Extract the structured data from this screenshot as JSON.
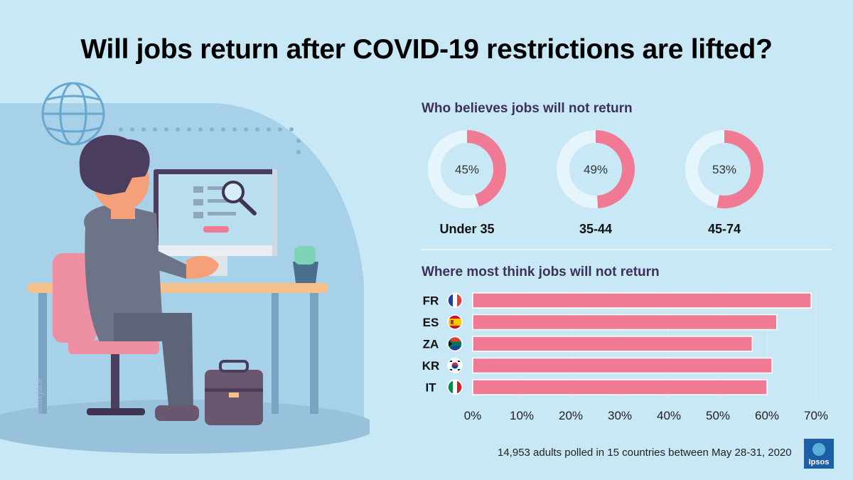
{
  "title": "Will jobs return after COVID-19 restrictions are lifted?",
  "watermark": "vectorjuice",
  "age_section": {
    "heading": "Who believes jobs will not return",
    "groups": [
      {
        "label": "Under 35",
        "value": 45,
        "display": "45%"
      },
      {
        "label": "35-44",
        "value": 49,
        "display": "49%"
      },
      {
        "label": "45-74",
        "value": 53,
        "display": "53%"
      }
    ]
  },
  "country_section": {
    "heading": "Where most think jobs will not return"
  },
  "chart_data": [
    {
      "type": "pie",
      "title": "Who believes jobs will not return",
      "categories": [
        "Under 35",
        "35-44",
        "45-74"
      ],
      "values": [
        45,
        49,
        53
      ],
      "value_labels": [
        "45%",
        "49%",
        "53%"
      ]
    },
    {
      "type": "bar",
      "orientation": "horizontal",
      "title": "Where most think jobs will not return",
      "categories": [
        "FR",
        "ES",
        "ZA",
        "KR",
        "IT"
      ],
      "values": [
        69,
        62,
        57,
        61,
        60
      ],
      "xlim": [
        0,
        70
      ],
      "ticks": [
        "0%",
        "10%",
        "20%",
        "30%",
        "40%",
        "50%",
        "60%",
        "70%"
      ],
      "grid": true
    }
  ],
  "footnote": "14,953 adults polled in 15 countries between May 28-31, 2020",
  "logo_text": "Ipsos",
  "colors": {
    "background": "#c9e8f5",
    "accent": "#f07a93",
    "ring_track": "#e6f4fb",
    "heading": "#3b3159"
  }
}
